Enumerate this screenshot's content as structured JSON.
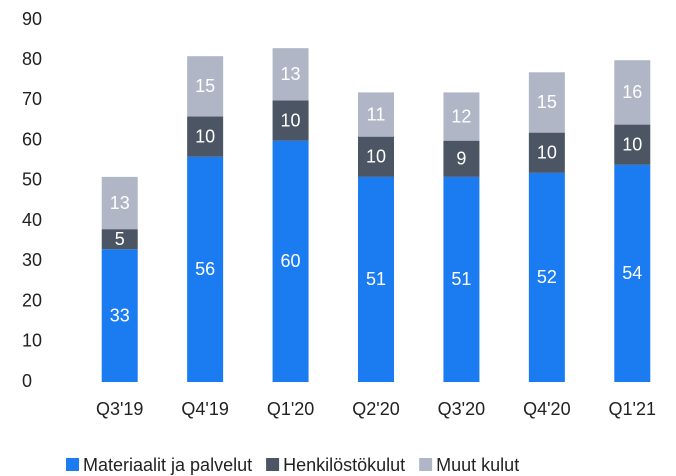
{
  "chart_data": {
    "type": "stacked_bar",
    "categories": [
      "Q3'19",
      "Q4'19",
      "Q1'20",
      "Q2'20",
      "Q3'20",
      "Q4'20",
      "Q1'21"
    ],
    "series": [
      {
        "name": "Materiaalit ja palvelut",
        "color": "#1b7cf2",
        "values": [
          33,
          56,
          60,
          51,
          51,
          52,
          54
        ]
      },
      {
        "name": "Henkilöstökulut",
        "color": "#4b5563",
        "values": [
          5,
          10,
          10,
          10,
          9,
          10,
          10
        ]
      },
      {
        "name": "Muut kulut",
        "color": "#b1b6c7",
        "values": [
          13,
          15,
          13,
          11,
          12,
          15,
          16
        ]
      }
    ],
    "ylim": [
      0,
      90
    ],
    "yticks": [
      0,
      10,
      20,
      30,
      40,
      50,
      60,
      70,
      80,
      90
    ],
    "grid": false,
    "legend": "bottom"
  }
}
